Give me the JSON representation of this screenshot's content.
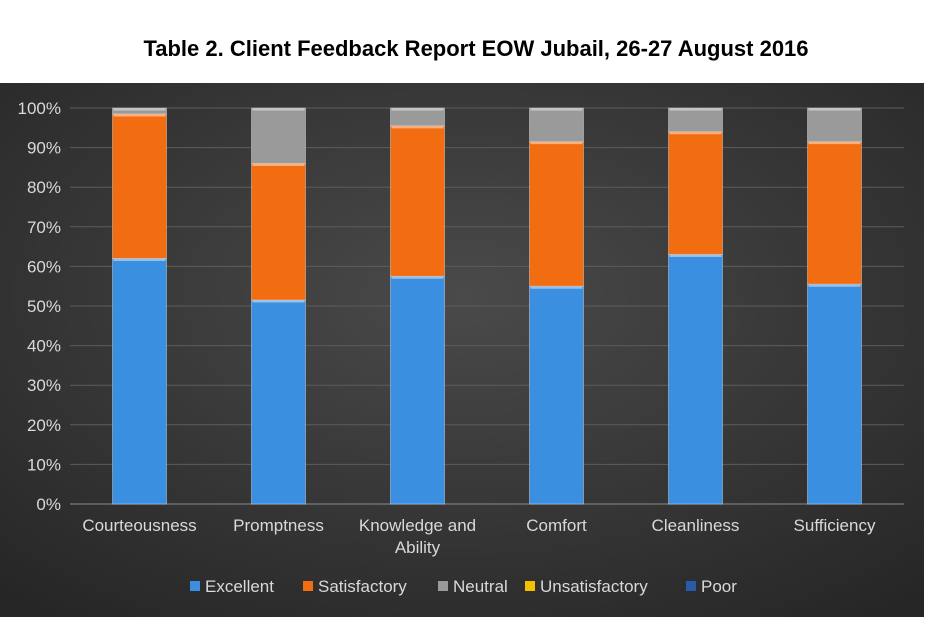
{
  "chart_data": {
    "type": "bar",
    "stacked": true,
    "title": "Table 2. Client Feedback Report EOW Jubail, 26-27 August 2016",
    "categories": [
      [
        "Courteousness"
      ],
      [
        "Promptness"
      ],
      [
        "Knowledge and",
        "Ability"
      ],
      [
        "Comfort"
      ],
      [
        "Cleanliness"
      ],
      [
        "Sufficiency"
      ]
    ],
    "yticks": [
      "0%",
      "10%",
      "20%",
      "30%",
      "40%",
      "50%",
      "60%",
      "70%",
      "80%",
      "90%",
      "100%"
    ],
    "ylim": [
      0,
      100
    ],
    "series": [
      {
        "name": "Excellent",
        "color": "#3b8fe0",
        "values": [
          62,
          51.5,
          57.5,
          55,
          63,
          55.5
        ]
      },
      {
        "name": "Satisfactory",
        "color": "#f26d12",
        "values": [
          36.5,
          34.5,
          38,
          36.5,
          31,
          36
        ]
      },
      {
        "name": "Neutral",
        "color": "#9a9a9a",
        "values": [
          1.5,
          14,
          4.5,
          8.5,
          6,
          8.5
        ]
      },
      {
        "name": "Unsatisfactory",
        "color": "#f2c200",
        "values": [
          0,
          0,
          0,
          0,
          0,
          0
        ]
      },
      {
        "name": "Poor",
        "color": "#2a5aa8",
        "values": [
          0,
          0,
          0,
          0,
          0,
          0
        ]
      }
    ],
    "grid": true,
    "legend": "bottom",
    "background": "#3a3a3a"
  }
}
